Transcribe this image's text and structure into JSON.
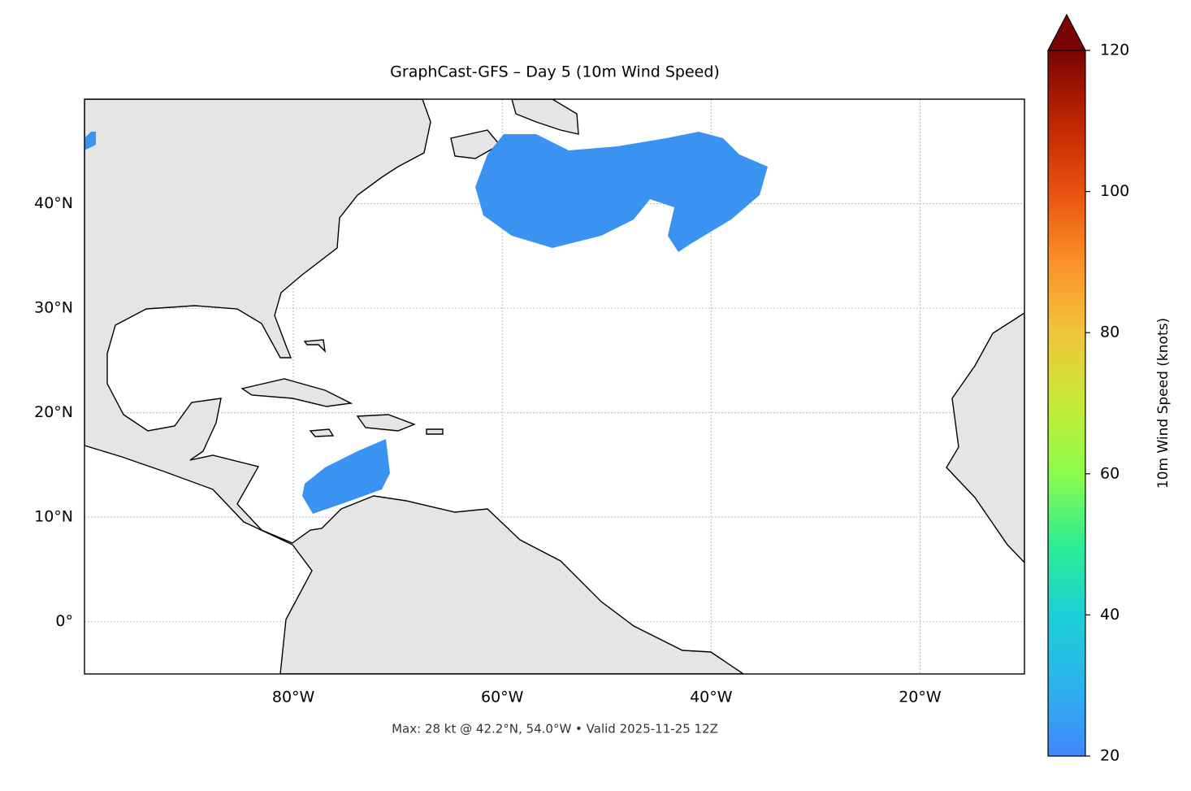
{
  "title": "GraphCast-GFS – Day 5 (10m Wind Speed)",
  "footer": "Max: 28 kt @ 42.2°N, 54.0°W • Valid 2025-11-25 12Z",
  "lon_lim": [
    -100,
    -10
  ],
  "lat_lim": [
    -5,
    50
  ],
  "lon_ticks": [
    {
      "value": -80,
      "label": "80°W"
    },
    {
      "value": -60,
      "label": "60°W"
    },
    {
      "value": -40,
      "label": "40°W"
    },
    {
      "value": -20,
      "label": "20°W"
    }
  ],
  "lat_ticks": [
    {
      "value": 0,
      "label": "0°"
    },
    {
      "value": 10,
      "label": "10°N"
    },
    {
      "value": 20,
      "label": "20°N"
    },
    {
      "value": 30,
      "label": "30°N"
    },
    {
      "value": 40,
      "label": "40°N"
    }
  ],
  "colorbar": {
    "label": "10m Wind Speed (knots)",
    "lim": [
      20,
      120
    ],
    "ticks": [
      20,
      40,
      60,
      80,
      100,
      120
    ]
  }
}
